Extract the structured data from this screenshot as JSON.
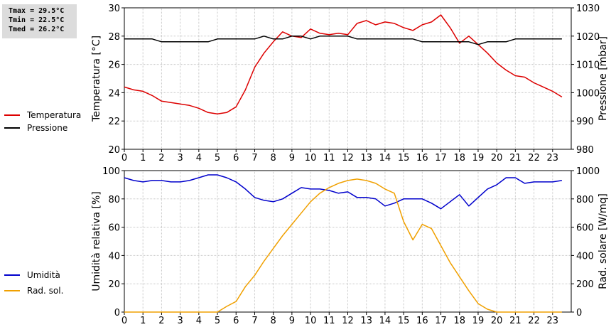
{
  "stats": {
    "tmax": "Tmax = 29.5°C",
    "tmin": "Tmin = 22.5°C",
    "tmed": "Tmed = 26.2°C"
  },
  "chart_data": [
    {
      "type": "line",
      "x_ticks": [
        "0",
        "1",
        "2",
        "3",
        "4",
        "5",
        "6",
        "7",
        "8",
        "9",
        "10",
        "11",
        "12",
        "13",
        "14",
        "15",
        "16",
        "17",
        "18",
        "19",
        "20",
        "21",
        "22",
        "23"
      ],
      "xlim": [
        0,
        24
      ],
      "grid": true,
      "legend_placement": "left",
      "left_axis": {
        "label": "Temperatura [°C]",
        "ticks": [
          "20",
          "22",
          "24",
          "26",
          "28",
          "30"
        ],
        "lim": [
          20,
          30
        ]
      },
      "right_axis": {
        "label": "Pressione [mbar]",
        "ticks": [
          "980",
          "990",
          "1000",
          "1010",
          "1020",
          "1030"
        ],
        "lim": [
          980,
          1030
        ]
      },
      "series": [
        {
          "name": "Temperatura",
          "color": "#dd0000",
          "axis": "left",
          "x": [
            0,
            0.5,
            1,
            1.5,
            2,
            2.5,
            3,
            3.5,
            4,
            4.5,
            5,
            5.5,
            6,
            6.5,
            7,
            7.5,
            8,
            8.5,
            9,
            9.5,
            10,
            10.5,
            11,
            11.5,
            12,
            12.5,
            13,
            13.5,
            14,
            14.5,
            15,
            15.5,
            16,
            16.5,
            17,
            17.5,
            18,
            18.5,
            19,
            19.5,
            20,
            20.5,
            21,
            21.5,
            22,
            22.5,
            23,
            23.5
          ],
          "values": [
            24.4,
            24.2,
            24.1,
            23.8,
            23.4,
            23.3,
            23.2,
            23.1,
            22.9,
            22.6,
            22.5,
            22.6,
            23.0,
            24.2,
            25.8,
            26.8,
            27.6,
            28.3,
            28.0,
            27.9,
            28.5,
            28.2,
            28.1,
            28.2,
            28.1,
            28.9,
            29.1,
            28.8,
            29.0,
            28.9,
            28.6,
            28.4,
            28.8,
            29.0,
            29.5,
            28.6,
            27.5,
            28.0,
            27.4,
            26.8,
            26.1,
            25.6,
            25.2,
            25.1,
            24.7,
            24.4,
            24.1,
            23.7
          ]
        },
        {
          "name": "Pressione",
          "color": "#000000",
          "axis": "right",
          "x": [
            0,
            0.3,
            1,
            1.5,
            2,
            2.5,
            3,
            4,
            4.5,
            5,
            5.5,
            6,
            7,
            7.5,
            8,
            8.5,
            9,
            9.5,
            10,
            10.5,
            11,
            12,
            12.5,
            13,
            14,
            15,
            15.5,
            16,
            17,
            18,
            18.5,
            19,
            19.5,
            20,
            20.5,
            21,
            22,
            23,
            23.5
          ],
          "values": [
            1019,
            1019,
            1019,
            1019,
            1018,
            1018,
            1018,
            1018,
            1018,
            1019,
            1019,
            1019,
            1019,
            1020,
            1019,
            1019,
            1020,
            1020,
            1019,
            1020,
            1020,
            1020,
            1019,
            1019,
            1019,
            1019,
            1019,
            1018,
            1018,
            1018,
            1018,
            1017,
            1018,
            1018,
            1018,
            1019,
            1019,
            1019,
            1019
          ]
        }
      ]
    },
    {
      "type": "line",
      "x_ticks": [
        "0",
        "1",
        "2",
        "3",
        "4",
        "5",
        "6",
        "7",
        "8",
        "9",
        "10",
        "11",
        "12",
        "13",
        "14",
        "15",
        "16",
        "17",
        "18",
        "19",
        "20",
        "21",
        "22",
        "23"
      ],
      "xlim": [
        0,
        24
      ],
      "grid": true,
      "legend_placement": "left",
      "left_axis": {
        "label": "Umidità relativa [%]",
        "ticks": [
          "0",
          "20",
          "40",
          "60",
          "80",
          "100"
        ],
        "lim": [
          0,
          100
        ]
      },
      "right_axis": {
        "label": "Rad. solare [W/mq]",
        "ticks": [
          "0",
          "200",
          "400",
          "600",
          "800",
          "1000"
        ],
        "lim": [
          0,
          1000
        ]
      },
      "series": [
        {
          "name": "Umidità",
          "color": "#0000cc",
          "axis": "left",
          "x": [
            0,
            0.5,
            1,
            1.5,
            2,
            2.5,
            3,
            3.5,
            4,
            4.5,
            5,
            5.5,
            6,
            6.5,
            7,
            7.5,
            8,
            8.5,
            9,
            9.5,
            10,
            10.5,
            11,
            11.5,
            12,
            12.5,
            13,
            13.5,
            14,
            14.5,
            15,
            15.5,
            16,
            16.5,
            17,
            17.5,
            18,
            18.5,
            19,
            19.5,
            20,
            20.5,
            21,
            21.5,
            22,
            22.5,
            23,
            23.5
          ],
          "values": [
            95,
            93,
            92,
            93,
            93,
            92,
            92,
            93,
            95,
            97,
            97,
            95,
            92,
            87,
            81,
            79,
            78,
            80,
            84,
            88,
            87,
            87,
            86,
            84,
            85,
            81,
            81,
            80,
            75,
            77,
            80,
            80,
            80,
            77,
            73,
            78,
            83,
            75,
            81,
            87,
            90,
            95,
            95,
            91,
            92,
            92,
            92,
            93
          ]
        },
        {
          "name": "Rad. sol.",
          "color": "#f0a000",
          "axis": "right",
          "x": [
            0,
            1,
            2,
            3,
            4,
            5,
            5.5,
            6,
            6.5,
            7,
            7.5,
            8,
            8.5,
            9,
            9.5,
            10,
            10.5,
            11,
            11.5,
            12,
            12.5,
            13,
            13.5,
            14,
            14.5,
            15,
            15.5,
            16,
            16.5,
            17,
            17.5,
            18,
            18.5,
            19,
            19.5,
            20,
            21,
            22,
            23,
            23.5
          ],
          "values": [
            0,
            0,
            0,
            0,
            0,
            0,
            40,
            75,
            180,
            260,
            360,
            450,
            540,
            620,
            700,
            780,
            840,
            880,
            910,
            930,
            940,
            930,
            910,
            870,
            840,
            640,
            510,
            620,
            590,
            470,
            350,
            250,
            150,
            60,
            20,
            0,
            0,
            0,
            0,
            0
          ]
        }
      ]
    }
  ]
}
